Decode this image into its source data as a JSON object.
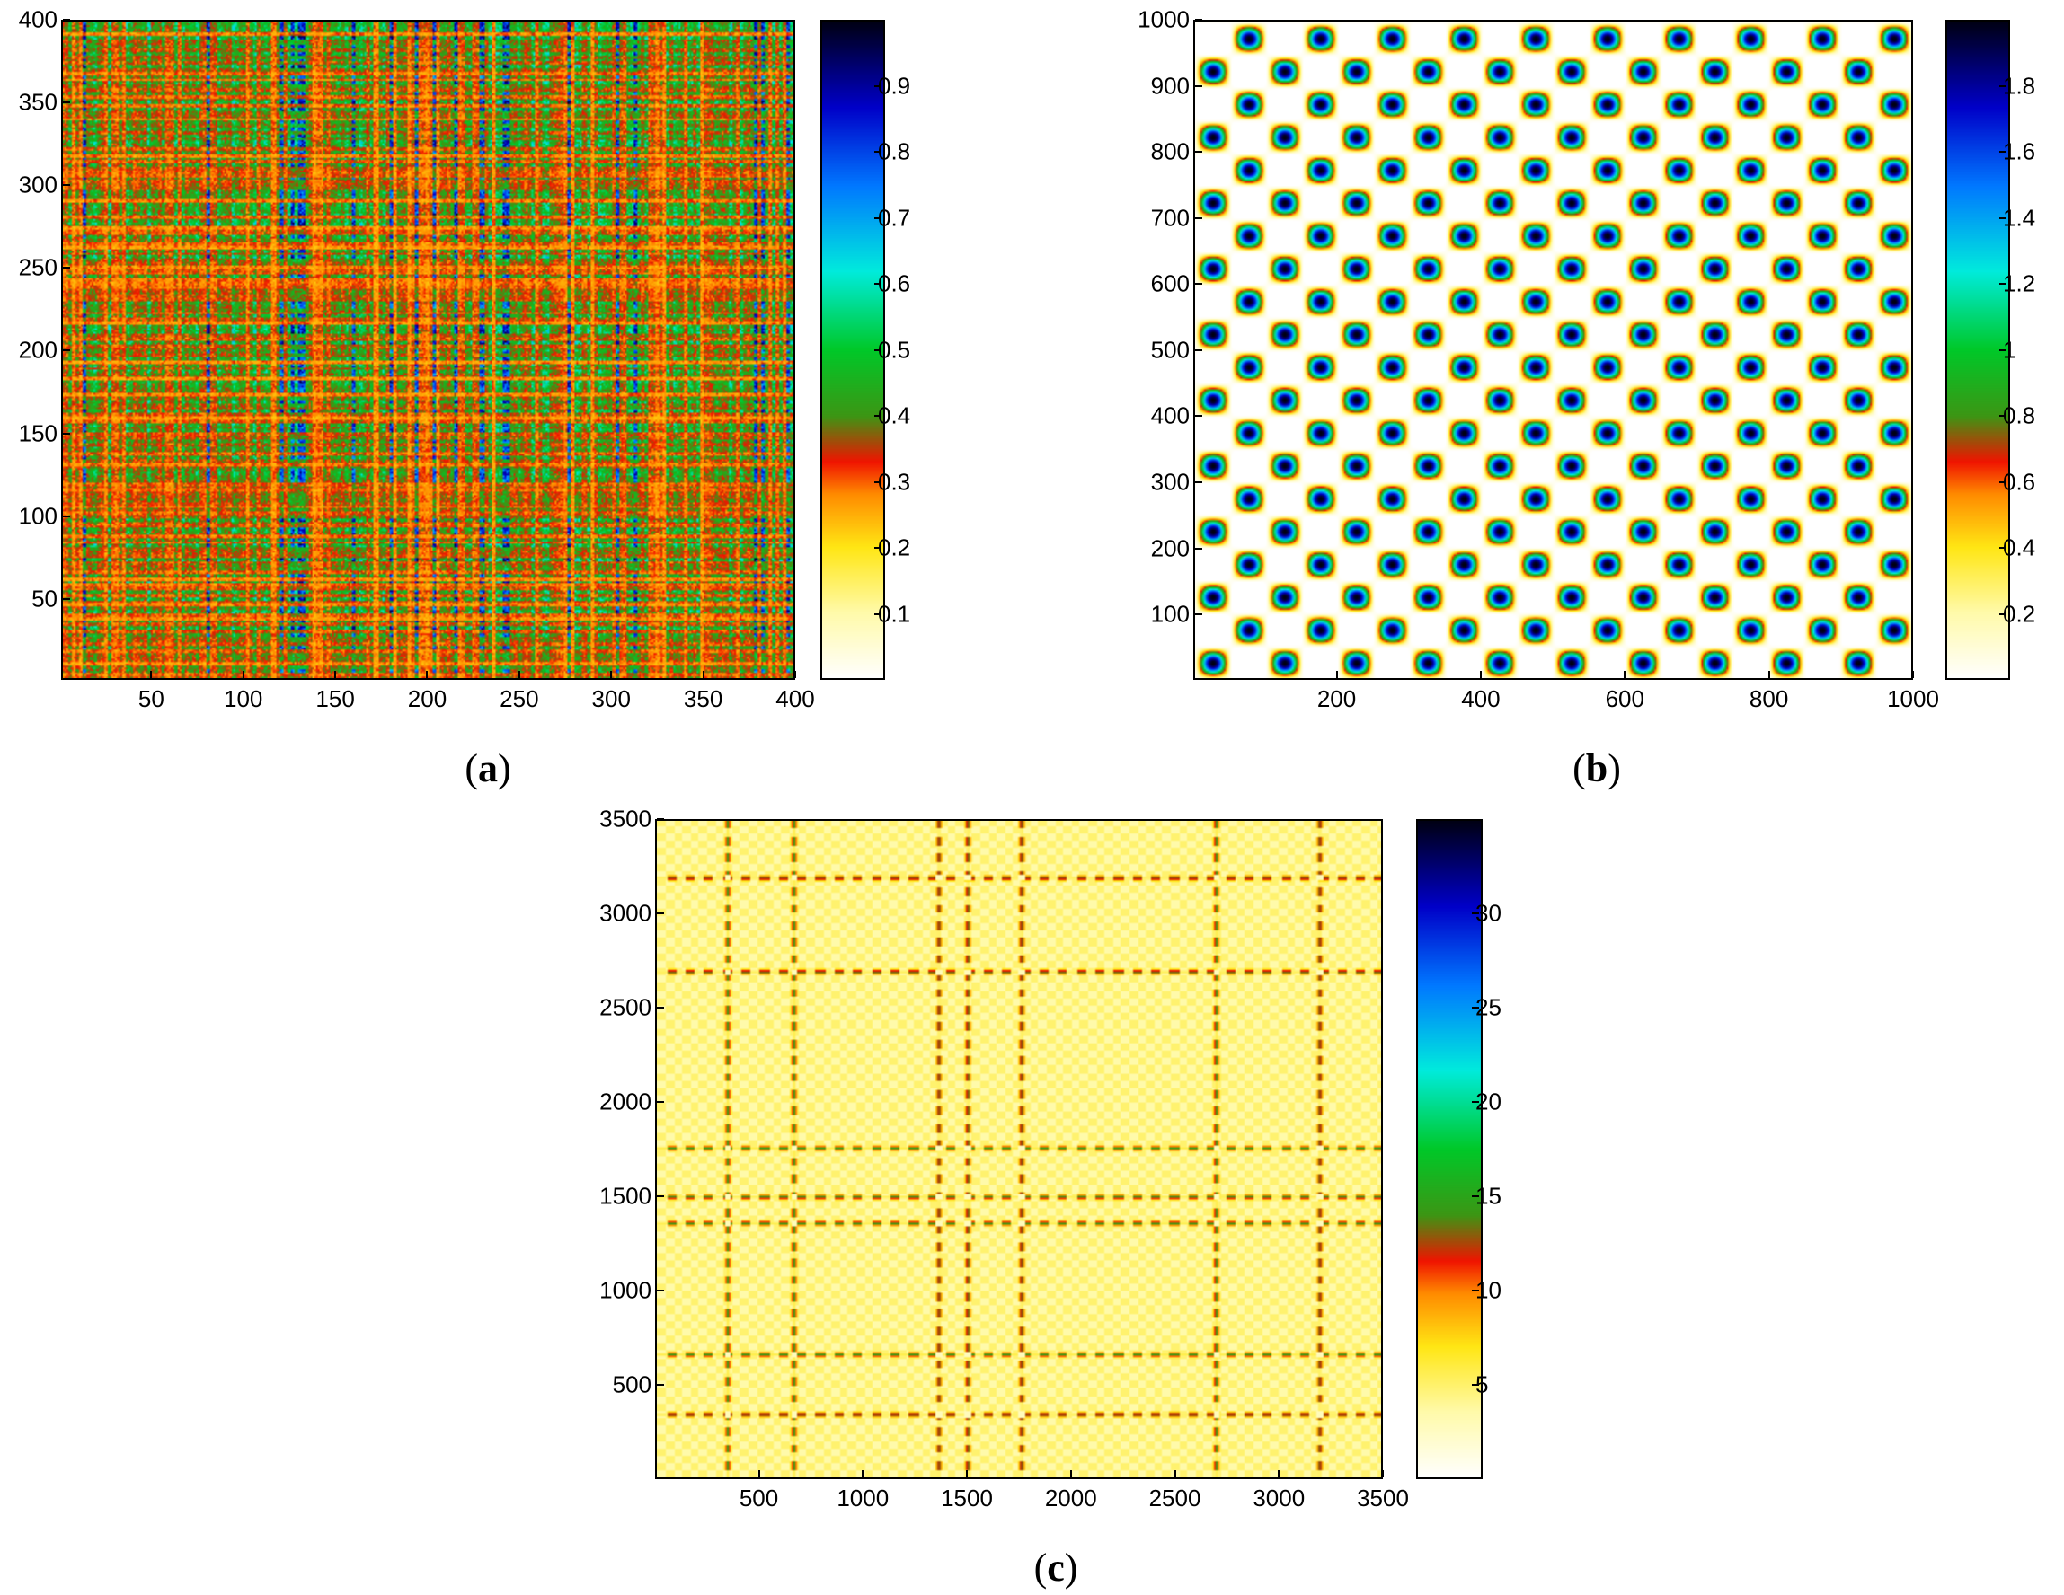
{
  "chart_data": [
    {
      "type": "heatmap",
      "caption_open": "(",
      "caption": "a",
      "caption_close": ")",
      "pattern": "noise",
      "x_ticks": [
        50,
        100,
        150,
        200,
        250,
        300,
        350,
        400
      ],
      "y_ticks": [
        50,
        100,
        150,
        200,
        250,
        300,
        350,
        400
      ],
      "xlim": [
        1,
        400
      ],
      "ylim": [
        1,
        400
      ],
      "colorbar_ticks": [
        0.1,
        0.2,
        0.3,
        0.4,
        0.5,
        0.6,
        0.7,
        0.8,
        0.9
      ],
      "colorbar_labels": [
        "0.1",
        "0.2",
        "0.3",
        "0.4",
        "0.5",
        "0.6",
        "0.7",
        "0.8",
        "0.9"
      ],
      "clim": [
        0,
        1
      ],
      "colormap": "yellow-red-green-cyan-blue-black"
    },
    {
      "type": "heatmap",
      "caption_open": "(",
      "caption": "b",
      "caption_close": ")",
      "pattern": "lattice",
      "x_ticks": [
        200,
        400,
        600,
        800,
        1000
      ],
      "y_ticks": [
        100,
        200,
        300,
        400,
        500,
        600,
        700,
        800,
        900,
        1000
      ],
      "xlim": [
        1,
        1000
      ],
      "ylim": [
        1,
        1000
      ],
      "colorbar_ticks": [
        0.2,
        0.4,
        0.6,
        0.8,
        1,
        1.2,
        1.4,
        1.6,
        1.8
      ],
      "colorbar_labels": [
        "0.2",
        "0.4",
        "0.6",
        "0.8",
        "1",
        "1.2",
        "1.4",
        "1.6",
        "1.8"
      ],
      "clim": [
        0,
        2
      ],
      "colormap": "yellow-red-green-cyan-blue-black"
    },
    {
      "type": "heatmap",
      "caption_open": "(",
      "caption": "c",
      "caption_close": ")",
      "pattern": "bands",
      "x_ticks": [
        500,
        1000,
        1500,
        2000,
        2500,
        3000,
        3500
      ],
      "y_ticks": [
        500,
        1000,
        1500,
        2000,
        2500,
        3000,
        3500
      ],
      "xlim": [
        1,
        3500
      ],
      "ylim": [
        1,
        3500
      ],
      "band_positions": [
        340,
        660,
        1360,
        1500,
        1760,
        2700,
        3200
      ],
      "colorbar_ticks": [
        5,
        10,
        15,
        20,
        25,
        30
      ],
      "colorbar_labels": [
        "5",
        "10",
        "15",
        "20",
        "25",
        "30"
      ],
      "clim": [
        0,
        35
      ],
      "colormap": "yellow-red-green-cyan-blue-black"
    }
  ]
}
